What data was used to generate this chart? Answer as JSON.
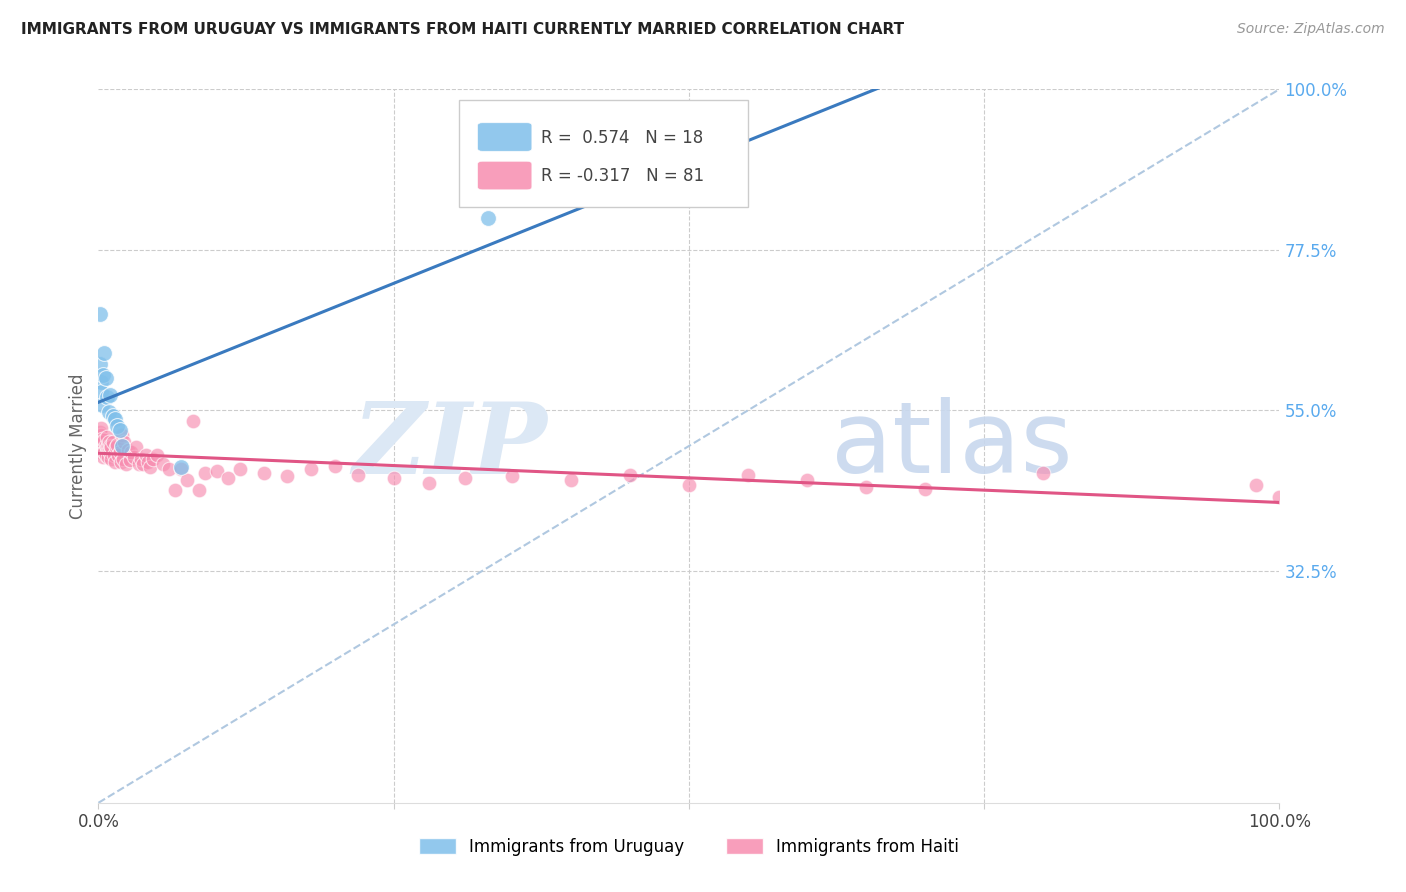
{
  "title": "IMMIGRANTS FROM URUGUAY VS IMMIGRANTS FROM HAITI CURRENTLY MARRIED CORRELATION CHART",
  "source_text": "Source: ZipAtlas.com",
  "ylabel": "Currently Married",
  "uruguay_R": 0.574,
  "uruguay_N": 18,
  "haiti_R": -0.317,
  "haiti_N": 81,
  "watermark_zip": "ZIP",
  "watermark_atlas": "atlas",
  "uruguay_color": "#7fbfea",
  "haiti_color": "#f78db0",
  "uruguay_line_color": "#3a7abf",
  "haiti_line_color": "#e05585",
  "diag_line_color": "#b0c8e0",
  "background_color": "#ffffff",
  "grid_color": "#cccccc",
  "right_tick_color": "#5aaaee",
  "xlim": [
    0.0,
    1.0
  ],
  "ylim": [
    0.0,
    1.0
  ],
  "ytick_positions": [
    0.325,
    0.55,
    0.775,
    1.0
  ],
  "ytick_labels": [
    "32.5%",
    "55.0%",
    "77.5%",
    "100.0%"
  ],
  "xtick_positions": [
    0.0,
    0.25,
    0.5,
    0.75,
    1.0
  ],
  "xticklabels": [
    "0.0%",
    "",
    "",
    "",
    "100.0%"
  ],
  "uruguay_x": [
    0.001,
    0.001,
    0.002,
    0.002,
    0.003,
    0.004,
    0.005,
    0.006,
    0.007,
    0.009,
    0.01,
    0.012,
    0.014,
    0.016,
    0.018,
    0.02,
    0.33,
    0.07
  ],
  "uruguay_y": [
    0.685,
    0.615,
    0.59,
    0.575,
    0.558,
    0.6,
    0.63,
    0.595,
    0.568,
    0.548,
    0.572,
    0.542,
    0.538,
    0.528,
    0.522,
    0.5,
    0.82,
    0.47
  ],
  "haiti_x": [
    0.001,
    0.001,
    0.001,
    0.002,
    0.002,
    0.002,
    0.002,
    0.003,
    0.003,
    0.003,
    0.004,
    0.004,
    0.005,
    0.005,
    0.006,
    0.006,
    0.007,
    0.007,
    0.008,
    0.008,
    0.009,
    0.009,
    0.01,
    0.01,
    0.011,
    0.011,
    0.012,
    0.013,
    0.014,
    0.015,
    0.016,
    0.017,
    0.018,
    0.019,
    0.02,
    0.021,
    0.022,
    0.023,
    0.025,
    0.027,
    0.028,
    0.03,
    0.032,
    0.034,
    0.036,
    0.038,
    0.04,
    0.042,
    0.044,
    0.046,
    0.05,
    0.055,
    0.06,
    0.065,
    0.07,
    0.075,
    0.08,
    0.085,
    0.09,
    0.1,
    0.11,
    0.12,
    0.14,
    0.16,
    0.18,
    0.2,
    0.22,
    0.25,
    0.28,
    0.31,
    0.35,
    0.4,
    0.45,
    0.5,
    0.55,
    0.6,
    0.65,
    0.7,
    0.8,
    0.98,
    1.0
  ],
  "haiti_y": [
    0.505,
    0.512,
    0.52,
    0.495,
    0.502,
    0.515,
    0.525,
    0.49,
    0.498,
    0.51,
    0.485,
    0.505,
    0.492,
    0.508,
    0.488,
    0.502,
    0.498,
    0.512,
    0.485,
    0.5,
    0.495,
    0.505,
    0.49,
    0.5,
    0.482,
    0.498,
    0.505,
    0.488,
    0.478,
    0.498,
    0.502,
    0.488,
    0.492,
    0.478,
    0.515,
    0.482,
    0.505,
    0.475,
    0.495,
    0.48,
    0.492,
    0.485,
    0.498,
    0.475,
    0.482,
    0.475,
    0.488,
    0.478,
    0.47,
    0.482,
    0.488,
    0.475,
    0.468,
    0.438,
    0.468,
    0.452,
    0.535,
    0.438,
    0.462,
    0.465,
    0.455,
    0.468,
    0.462,
    0.458,
    0.468,
    0.472,
    0.46,
    0.455,
    0.448,
    0.455,
    0.458,
    0.452,
    0.46,
    0.445,
    0.46,
    0.452,
    0.442,
    0.44,
    0.462,
    0.445,
    0.428
  ]
}
